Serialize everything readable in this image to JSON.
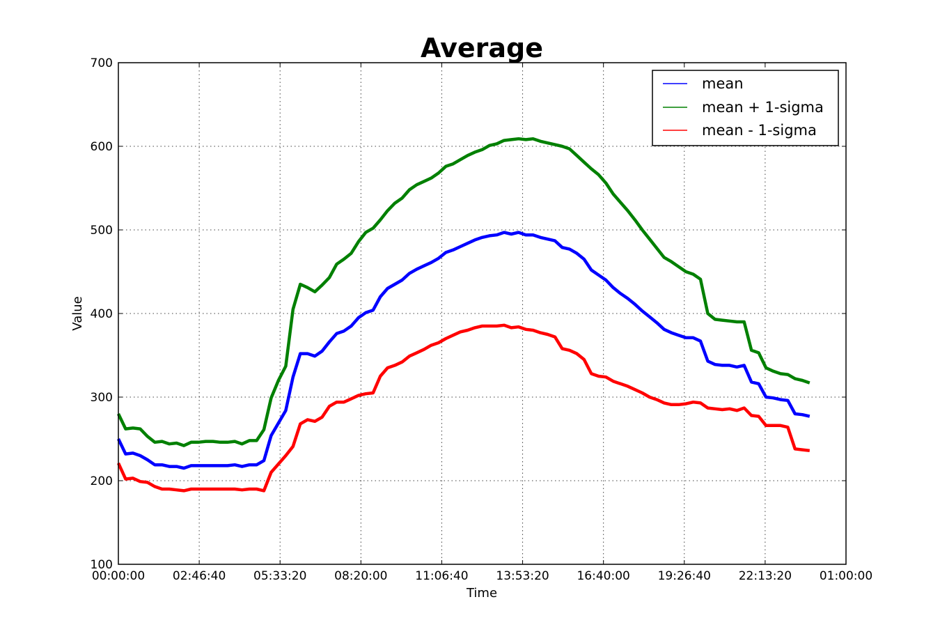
{
  "chart_data": {
    "type": "line",
    "title": "Average",
    "xlabel": "Time",
    "ylabel": "Value",
    "xlim": [
      0,
      90000
    ],
    "ylim": [
      100,
      700
    ],
    "x_tick_values": [
      0,
      10000,
      20000,
      30000,
      40000,
      50000,
      60000,
      70000,
      80000,
      90000
    ],
    "x_tick_labels": [
      "00:00:00",
      "02:46:40",
      "05:33:20",
      "08:20:00",
      "11:06:40",
      "13:53:20",
      "16:40:00",
      "19:26:40",
      "22:13:20",
      "01:00:00"
    ],
    "y_ticks": [
      100,
      200,
      300,
      400,
      500,
      600,
      700
    ],
    "grid": true,
    "legend_position": "top-right",
    "x_step_seconds": 900,
    "series": [
      {
        "name": "mean",
        "color": "#0000ff",
        "values": [
          250,
          232,
          233,
          230,
          225,
          219,
          219,
          217,
          217,
          215,
          218,
          218,
          218,
          218,
          218,
          218,
          219,
          217,
          219,
          219,
          224,
          254,
          269,
          284,
          324,
          352,
          352,
          349,
          355,
          366,
          376,
          379,
          385,
          395,
          401,
          404,
          420,
          430,
          435,
          440,
          448,
          453,
          457,
          461,
          466,
          473,
          476,
          480,
          484,
          488,
          491,
          493,
          494,
          497,
          495,
          497,
          494,
          494,
          491,
          489,
          487,
          479,
          477,
          472,
          465,
          452,
          446,
          440,
          431,
          424,
          418,
          411,
          403,
          396,
          389,
          381,
          377,
          374,
          371,
          371,
          367,
          343,
          339,
          338,
          338,
          336,
          338,
          318,
          316,
          300,
          299,
          297,
          296,
          280,
          279,
          277
        ]
      },
      {
        "name": "mean + 1-sigma",
        "color": "#008000",
        "values": [
          280,
          262,
          263,
          262,
          253,
          246,
          247,
          244,
          245,
          242,
          246,
          246,
          247,
          247,
          246,
          246,
          247,
          244,
          248,
          248,
          261,
          299,
          320,
          337,
          405,
          435,
          431,
          426,
          434,
          443,
          459,
          465,
          472,
          486,
          497,
          502,
          512,
          523,
          532,
          538,
          548,
          554,
          558,
          562,
          568,
          576,
          579,
          584,
          589,
          593,
          596,
          601,
          603,
          607,
          608,
          609,
          608,
          609,
          606,
          604,
          602,
          600,
          597,
          589,
          581,
          573,
          566,
          556,
          543,
          533,
          523,
          512,
          500,
          489,
          478,
          467,
          462,
          456,
          450,
          447,
          441,
          400,
          393,
          392,
          391,
          390,
          390,
          356,
          353,
          335,
          331,
          328,
          327,
          322,
          320,
          317
        ]
      },
      {
        "name": "mean - 1-sigma",
        "color": "#ff0000",
        "values": [
          221,
          202,
          203,
          199,
          198,
          193,
          190,
          190,
          189,
          188,
          190,
          190,
          190,
          190,
          190,
          190,
          190,
          189,
          190,
          190,
          188,
          210,
          220,
          230,
          241,
          268,
          273,
          271,
          276,
          289,
          294,
          294,
          298,
          302,
          304,
          305,
          325,
          335,
          338,
          342,
          349,
          353,
          357,
          362,
          365,
          370,
          374,
          378,
          380,
          383,
          385,
          385,
          385,
          386,
          383,
          384,
          381,
          380,
          377,
          375,
          372,
          358,
          356,
          352,
          345,
          328,
          325,
          324,
          319,
          316,
          313,
          309,
          305,
          300,
          297,
          293,
          291,
          291,
          292,
          294,
          293,
          287,
          286,
          285,
          286,
          284,
          287,
          278,
          277,
          266,
          266,
          266,
          264,
          238,
          237,
          236
        ]
      }
    ]
  }
}
